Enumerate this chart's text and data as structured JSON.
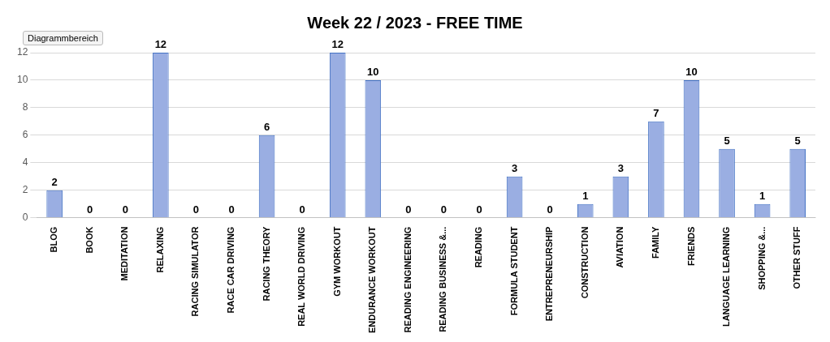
{
  "chart_data": {
    "type": "bar",
    "title": "Week 22 / 2023 - FREE TIME",
    "categories": [
      "BLOG",
      "BOOK",
      "MEDITATION",
      "RELAXING",
      "RACING SIMULATOR",
      "RACE CAR DRIVING",
      "RACING THEORY",
      "REAL WORLD DRIVING",
      "GYM WORKOUT",
      "ENDURANCE WORKOUT",
      "READING ENGINEERING",
      "READING BUSINESS &...",
      "READING",
      "FORMULA STUDENT",
      "ENTREPRENEURSHIP",
      "CONSTRUCTION",
      "AVIATION",
      "FAMILY",
      "FRIENDS",
      "LANGUAGE LEARNING",
      "SHOPPING &...",
      "OTHER STUFF"
    ],
    "values": [
      2,
      0,
      0,
      12,
      0,
      0,
      6,
      0,
      12,
      10,
      0,
      0,
      0,
      3,
      0,
      1,
      3,
      7,
      10,
      5,
      1,
      5
    ],
    "color": "#9aaee2",
    "ylim": [
      0,
      12
    ],
    "yticks": [
      0,
      2,
      4,
      6,
      8,
      10,
      12
    ],
    "grid": "y",
    "data_labels": true,
    "legend": false,
    "annotations": [
      "Diagrammbereich"
    ]
  }
}
